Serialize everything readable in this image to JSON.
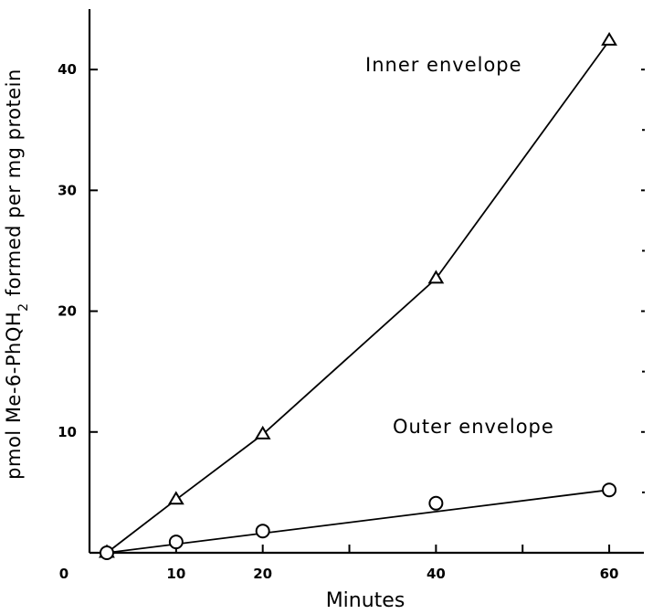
{
  "chart_data": {
    "type": "line",
    "title": "",
    "xlabel": "Minutes",
    "ylabel": {
      "prefix": "pmol Me-6-PhQH",
      "subscript": "2",
      "suffix": " formed per mg protein"
    },
    "xlim": [
      0,
      64
    ],
    "ylim": [
      0,
      45
    ],
    "x_ticks": [
      0,
      10,
      20,
      40,
      60
    ],
    "x_tick_labels": [
      "0",
      "10",
      "20",
      "40",
      "60"
    ],
    "y_ticks": [
      10,
      20,
      30,
      40
    ],
    "y_tick_labels": [
      "10",
      "20",
      "30",
      "40"
    ],
    "grid": false,
    "series": [
      {
        "name": "Inner envelope",
        "marker": "triangle",
        "x": [
          2,
          10,
          20,
          40,
          60
        ],
        "y": [
          0,
          4.4,
          9.8,
          22.7,
          42.4
        ]
      },
      {
        "name": "Outer envelope",
        "marker": "circle",
        "x": [
          2,
          10,
          20,
          40,
          60
        ],
        "y": [
          0,
          0.9,
          1.8,
          4.1,
          5.2
        ]
      }
    ]
  }
}
